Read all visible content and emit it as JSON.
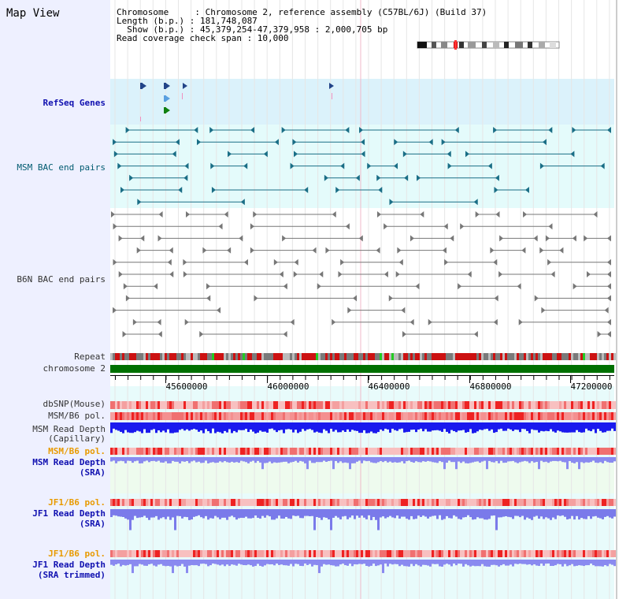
{
  "title": "Map View",
  "header": {
    "chromosome_line": "Chromosome     : Chromosome 2, reference assembly (C57BL/6J) (Build 37)",
    "length_line": "Length (b.p.) : 181,748,087",
    "show_line": "  Show (b.p.) : 45,379,254-47,379,958 : 2,000,705 bp",
    "coverage_line": "Read coverage check span : 10,000"
  },
  "tracks": {
    "refseq": "RefSeq Genes",
    "msm_bac": "MSM BAC end pairs",
    "b6n_bac": "B6N BAC end pairs",
    "repeat": "Repeat",
    "chromosome": "chromosome 2",
    "dbsnp": "dbSNP(Mouse)",
    "msm_pol1": "MSM/B6 pol.",
    "msm_depth_cap_1": "MSM Read Depth",
    "msm_depth_cap_2": "(Capillary)",
    "msm_pol2": "MSM/B6 pol.",
    "msm_depth_sra_1": "MSM Read Depth",
    "msm_depth_sra_2": "(SRA)",
    "jf1_pol1": "JF1/B6 pol.",
    "jf1_depth_sra_1": "JF1 Read Depth",
    "jf1_depth_sra_2": "(SRA)",
    "jf1_pol2": "JF1/B6 pol.",
    "jf1_depth_trim_1": "JF1 Read Depth",
    "jf1_depth_trim_2": "(SRA trimmed)"
  },
  "ruler": {
    "ticks": [
      "45600000",
      "46000000",
      "46400000",
      "46800000",
      "47200000"
    ]
  },
  "colors": {
    "msm_background": "#e4fbfb",
    "b6n_background": "#ffffff",
    "refseq_background": "#dbf2fb",
    "chromosome": "#007000",
    "polymorphism_hi": "#ee2222",
    "polymorphism_lo": "#f8c0c0",
    "depth_capillary": "#1a1aee",
    "depth_sra": "#8a8af0"
  }
}
